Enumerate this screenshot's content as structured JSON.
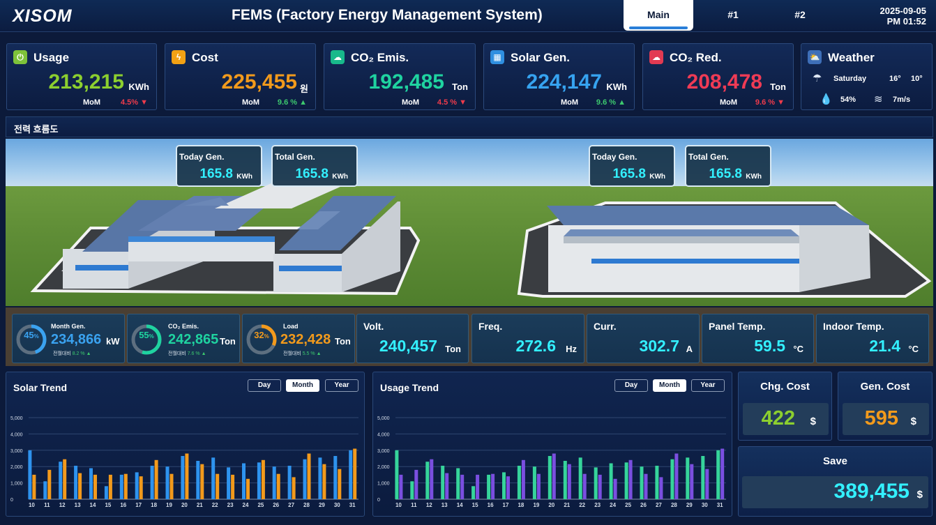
{
  "header": {
    "logo": "XISOM",
    "title": "FEMS (Factory Energy Management System)",
    "tabs": [
      {
        "label": "Main",
        "active": true
      },
      {
        "label": "#1",
        "active": false
      },
      {
        "label": "#2",
        "active": false
      }
    ],
    "date": "2025-09-05",
    "time": "PM 01:52"
  },
  "kpis": [
    {
      "title": "Usage",
      "value": "213,215",
      "unit": "KWh",
      "mom_label": "MoM",
      "mom": "4.5%",
      "trend": "down",
      "color": "#8ccf2f",
      "icon_bg": "#7ec23a",
      "icon": "plug-icon"
    },
    {
      "title": "Cost",
      "value": "225,455",
      "unit": "원",
      "mom_label": "MoM",
      "mom": "9.6 %",
      "trend": "up",
      "color": "#f29a1c",
      "icon_bg": "#f2a114",
      "icon": "bolt-icon"
    },
    {
      "title": "CO₂ Emis.",
      "value": "192,485",
      "unit": "Ton",
      "mom_label": "MoM",
      "mom": "4.5 %",
      "trend": "down",
      "color": "#1fd3a0",
      "icon_bg": "#18b98b",
      "icon": "cloud-icon"
    },
    {
      "title": "Solar Gen.",
      "value": "224,147",
      "unit": "KWh",
      "mom_label": "MoM",
      "mom": "9.6 %",
      "trend": "up",
      "color": "#36a3f0",
      "icon_bg": "#2f8fe0",
      "icon": "solar-icon"
    },
    {
      "title": "CO₂ Red.",
      "value": "208,478",
      "unit": "Ton",
      "mom_label": "MoM",
      "mom": "9.6 %",
      "trend": "down",
      "color": "#ef3b55",
      "icon_bg": "#e23a52",
      "icon": "cloud-check-icon"
    }
  ],
  "weather": {
    "title": "Weather",
    "day": "Saturday",
    "high": "16°",
    "low": "10°",
    "humidity": "54%",
    "wind": "7m/s"
  },
  "section": {
    "title": "전력 흐름도"
  },
  "gen_boxes": [
    {
      "label": "Today Gen.",
      "value": "165.8",
      "unit": "KWh"
    },
    {
      "label": "Total Gen.",
      "value": "165.8",
      "unit": "KWh"
    },
    {
      "label": "Today Gen.",
      "value": "165.8",
      "unit": "KWh"
    },
    {
      "label": "Total Gen.",
      "value": "165.8",
      "unit": "KWh"
    }
  ],
  "gauges": [
    {
      "pct": "45",
      "pct_sign": "%",
      "label": "Month Gen.",
      "value": "234,866",
      "unit": "kW",
      "sub": "전월대비",
      "sub_val": "8.2 %",
      "color": "#3aa2f0",
      "fill": 0.45
    },
    {
      "pct": "55",
      "pct_sign": "%",
      "label": "CO₂ Emis.",
      "value": "242,865",
      "unit": "Ton",
      "sub": "전월대비",
      "sub_val": "7.6 %",
      "color": "#1fd3a0",
      "fill": 0.55
    },
    {
      "pct": "32",
      "pct_sign": "%",
      "label": "Load",
      "value": "232,428",
      "unit": "Ton",
      "sub": "전월대비",
      "sub_val": "5.5 %",
      "color": "#f29a1c",
      "fill": 0.32
    }
  ],
  "metrics": [
    {
      "label": "Volt.",
      "value": "240,457",
      "unit": "Ton"
    },
    {
      "label": "Freq.",
      "value": "272.6",
      "unit": "Hz"
    },
    {
      "label": "Curr.",
      "value": "302.7",
      "unit": "A"
    },
    {
      "label": "Panel Temp.",
      "value": "59.5",
      "unit": "°C"
    },
    {
      "label": "Indoor Temp.",
      "value": "21.4",
      "unit": "°C"
    }
  ],
  "period_buttons": [
    "Day",
    "Month",
    "Year"
  ],
  "charts": [
    {
      "title": "Solar Trend",
      "active_period": "Month",
      "colors": [
        "#2e93ee",
        "#f29a1c"
      ]
    },
    {
      "title": "Usage Trend",
      "active_period": "Month",
      "colors": [
        "#36d49b",
        "#7a4fe0"
      ]
    }
  ],
  "chart_data": [
    {
      "type": "bar",
      "title": "Solar Trend",
      "categories": [
        "10",
        "11",
        "12",
        "13",
        "14",
        "15",
        "16",
        "17",
        "18",
        "19",
        "20",
        "21",
        "22",
        "23",
        "24",
        "25",
        "26",
        "27",
        "28",
        "29",
        "30",
        "31"
      ],
      "series": [
        {
          "values": [
            3000,
            1100,
            2300,
            2050,
            1900,
            800,
            1500,
            1650,
            2050,
            2000,
            2650,
            2350,
            2550,
            1950,
            2200,
            2250,
            2000,
            2050,
            2450,
            2550,
            2650,
            3000
          ]
        },
        {
          "values": [
            1500,
            1800,
            2450,
            1600,
            1500,
            1500,
            1550,
            1400,
            2400,
            1550,
            2800,
            2150,
            1550,
            1500,
            1250,
            2400,
            1550,
            1350,
            2800,
            2150,
            1850,
            3100
          ]
        }
      ],
      "ylim": [
        0,
        5000
      ],
      "yticks": [
        "0",
        "1,000",
        "2,000",
        "3,000",
        "4,000",
        "5,000"
      ]
    },
    {
      "type": "bar",
      "title": "Usage Trend",
      "categories": [
        "10",
        "11",
        "12",
        "13",
        "14",
        "15",
        "16",
        "17",
        "18",
        "19",
        "20",
        "21",
        "22",
        "23",
        "24",
        "25",
        "26",
        "27",
        "28",
        "29",
        "30",
        "31"
      ],
      "series": [
        {
          "values": [
            3000,
            1100,
            2300,
            2050,
            1900,
            800,
            1500,
            1650,
            2050,
            2000,
            2650,
            2350,
            2550,
            1950,
            2200,
            2250,
            2000,
            2050,
            2450,
            2550,
            2650,
            3000
          ]
        },
        {
          "values": [
            1500,
            1800,
            2450,
            1600,
            1500,
            1500,
            1550,
            1400,
            2400,
            1550,
            2800,
            2150,
            1550,
            1500,
            1250,
            2400,
            1550,
            1350,
            2800,
            2150,
            1850,
            3100
          ]
        }
      ],
      "ylim": [
        0,
        5000
      ],
      "yticks": [
        "0",
        "1,000",
        "2,000",
        "3,000",
        "4,000",
        "5,000"
      ]
    }
  ],
  "costs": {
    "chg": {
      "title": "Chg. Cost",
      "value": "422",
      "unit": "$",
      "color": "#8ccf2f"
    },
    "gen": {
      "title": "Gen. Cost",
      "value": "595",
      "unit": "$",
      "color": "#f29a1c"
    },
    "save": {
      "title": "Save",
      "value": "389,455",
      "unit": "$",
      "color": "#33f0ff"
    }
  }
}
